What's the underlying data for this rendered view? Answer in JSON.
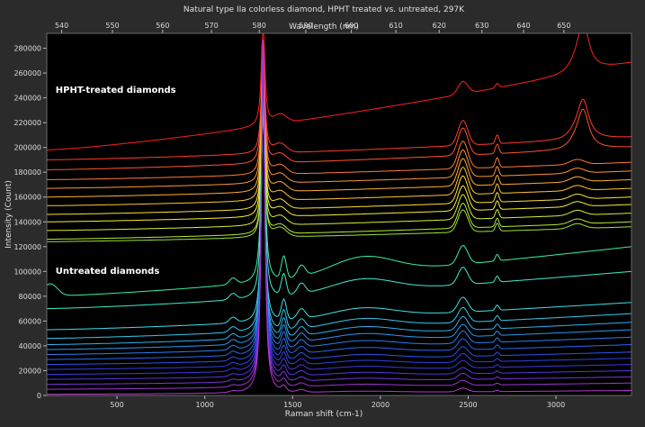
{
  "chart_data": {
    "type": "line",
    "title": "Natural type IIa colorless diamond, HPHT treated vs. untreated, 297K",
    "xlabel": "Raman shift (cm-1)",
    "x2label": "Wavelength (nm)",
    "ylabel": "Intensity (Count)",
    "xlim": [
      100,
      3430
    ],
    "ylim": [
      0,
      292000
    ],
    "x_ticks": [
      500,
      1000,
      1500,
      2000,
      2500,
      3000
    ],
    "x2_ticks": [
      540,
      550,
      560,
      570,
      580,
      590,
      600,
      610,
      620,
      630,
      640,
      650
    ],
    "x2_tick_positions": [
      185,
      474,
      760,
      1038,
      1310,
      1575,
      1835,
      2088,
      2335,
      2578,
      2815,
      3045
    ],
    "y_ticks": [
      0,
      20000,
      40000,
      60000,
      80000,
      100000,
      120000,
      140000,
      160000,
      180000,
      200000,
      220000,
      240000,
      260000,
      280000
    ],
    "y_tick_labels": [
      "0",
      "20000",
      "40000",
      "60000",
      "80000",
      "100000",
      "120000",
      "140000",
      "160000",
      "180000",
      "200000",
      "220000",
      "240000",
      "260000",
      "280000"
    ],
    "grid": false,
    "annotations": [
      {
        "text": "HPHT-treated diamonds",
        "x": 150,
        "y": 244000
      },
      {
        "text": "Untreated diamonds",
        "x": 150,
        "y": 98000
      }
    ],
    "series_groups": [
      {
        "group": "HPHT-treated diamonds",
        "colors": [
          "#ff2020",
          "#ff3b2a",
          "#ff5230",
          "#ff7a30",
          "#ff9530",
          "#ffae2f",
          "#ffc62f",
          "#ffe030",
          "#f8f030",
          "#d8f030",
          "#b6ea34",
          "#9ce23a"
        ],
        "baselines": [
          198000,
          190000,
          182000,
          174000,
          167000,
          160000,
          153000,
          146000,
          140000,
          133000,
          126000,
          124000
        ],
        "rises": [
          70000,
          18000,
          18000,
          14000,
          14000,
          14000,
          14000,
          14000,
          14000,
          14000,
          14000,
          12000
        ],
        "peak_1332": [
          90000,
          95000,
          100000,
          100000,
          100000,
          100000,
          100000,
          100000,
          100000,
          100000,
          100000,
          100000
        ],
        "peak_2470": [
          10000,
          20000,
          22000,
          22000,
          22000,
          22000,
          22000,
          22000,
          20000,
          20000,
          20000,
          18000
        ]
      },
      {
        "group": "Untreated diamonds",
        "colors": [
          "#3af0a0",
          "#40ecc8",
          "#3ee0e8",
          "#34c8f0",
          "#2fb0f0",
          "#2c96f0",
          "#2a7ef0",
          "#2a68ee",
          "#2c54ea",
          "#3040e6",
          "#4038e0",
          "#5a34dc",
          "#7a34d8",
          "#9a36d4",
          "#b438d0"
        ],
        "baselines": [
          80000,
          70000,
          53000,
          46000,
          41000,
          37000,
          33000,
          29000,
          25000,
          21000,
          17000,
          13000,
          9000,
          5000,
          1000
        ],
        "rises": [
          40000,
          30000,
          22000,
          20000,
          18000,
          16000,
          14000,
          12000,
          10000,
          9000,
          8000,
          7000,
          6000,
          5000,
          3000
        ],
        "peak_1332": [
          190000,
          190000,
          190000,
          200000,
          210000,
          220000,
          230000,
          240000,
          250000,
          260000,
          270000,
          280000,
          285000,
          290000,
          290000
        ],
        "peak_2470": [
          15000,
          14000,
          12000,
          12000,
          11000,
          10000,
          10000,
          9000,
          8000,
          7000,
          6000,
          5000,
          5000,
          4000,
          3000
        ]
      }
    ]
  }
}
